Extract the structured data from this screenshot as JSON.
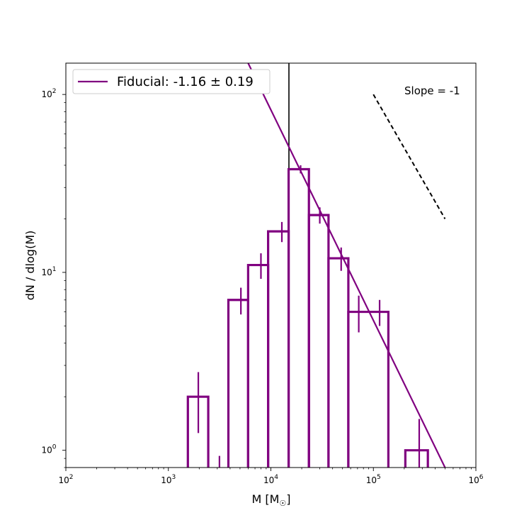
{
  "chart_data": {
    "type": "line",
    "x_scale": "log",
    "y_scale": "log",
    "xlim": [
      100,
      1000000
    ],
    "ylim": [
      0.8,
      150
    ],
    "xlabel": "M [M",
    "xlabel_sub": "☉",
    "xlabel_end": "]",
    "ylabel": "dN / dlog(M)",
    "x_ticks": [
      {
        "value": 100,
        "base": "10",
        "exp": "2"
      },
      {
        "value": 1000,
        "base": "10",
        "exp": "3"
      },
      {
        "value": 10000,
        "base": "10",
        "exp": "4"
      },
      {
        "value": 100000,
        "base": "10",
        "exp": "5"
      },
      {
        "value": 1000000,
        "base": "10",
        "exp": "6"
      }
    ],
    "y_ticks": [
      {
        "value": 1,
        "base": "10",
        "exp": "0"
      },
      {
        "value": 10,
        "base": "10",
        "exp": "1"
      },
      {
        "value": 100,
        "base": "10",
        "exp": "2"
      }
    ],
    "histogram": {
      "name": "",
      "color": "#800080",
      "bins": [
        {
          "left": 1550,
          "right": 2450,
          "value": 2
        },
        {
          "left": 3850,
          "right": 6000,
          "value": 7
        },
        {
          "left": 6000,
          "right": 9400,
          "value": 11
        },
        {
          "left": 9400,
          "right": 14900,
          "value": 17
        },
        {
          "left": 14900,
          "right": 23500,
          "value": 38
        },
        {
          "left": 23500,
          "right": 36500,
          "value": 21
        },
        {
          "left": 36500,
          "right": 57000,
          "value": 12
        },
        {
          "left": 57000,
          "right": 140000,
          "value": 6
        },
        {
          "left": 205000,
          "right": 340000,
          "value": 1
        }
      ],
      "error_bars": [
        {
          "x": 1960,
          "low": 1.25,
          "high": 2.75
        },
        {
          "x": 3150,
          "low": 0.8,
          "high": 0.93
        },
        {
          "x": 5100,
          "low": 5.8,
          "high": 8.2
        },
        {
          "x": 8000,
          "low": 9.2,
          "high": 12.8
        },
        {
          "x": 12800,
          "low": 14.8,
          "high": 19.2
        },
        {
          "x": 19500,
          "low": 36,
          "high": 40
        },
        {
          "x": 30000,
          "low": 18.8,
          "high": 23.2
        },
        {
          "x": 48500,
          "low": 10.2,
          "high": 13.8
        },
        {
          "x": 72000,
          "low": 4.6,
          "high": 7.4
        },
        {
          "x": 115000,
          "low": 5.0,
          "high": 7.0
        },
        {
          "x": 280000,
          "low": 0.7,
          "high": 1.5
        }
      ]
    },
    "fit_line": {
      "name": "Fiducial: -1.16 ± 0.19",
      "color": "#800080",
      "slope": -1.16,
      "points": [
        [
          6000,
          150
        ],
        [
          500000,
          0.8
        ]
      ]
    },
    "reference_line": {
      "label": "Slope = -1",
      "color": "#000000",
      "style": "dashed",
      "points": [
        [
          100000,
          100
        ],
        [
          500000,
          20
        ]
      ]
    },
    "vertical_line": {
      "x": 15000,
      "color": "#000000"
    },
    "legend": {
      "placement": "top-left",
      "entries": [
        "Fiducial: -1.16 ± 0.19"
      ]
    }
  }
}
